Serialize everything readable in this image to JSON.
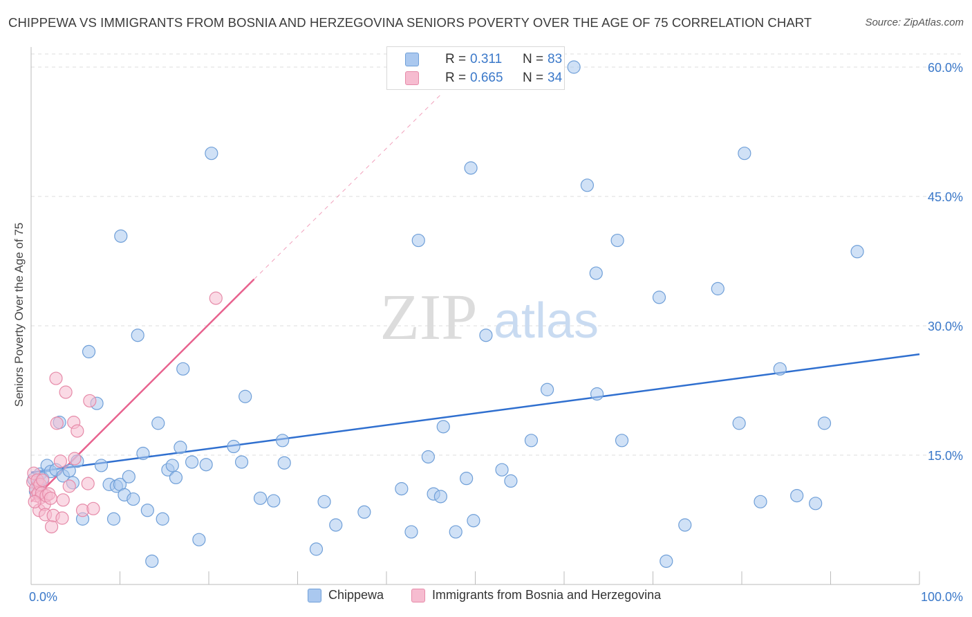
{
  "title": "CHIPPEWA VS IMMIGRANTS FROM BOSNIA AND HERZEGOVINA SENIORS POVERTY OVER THE AGE OF 75 CORRELATION CHART",
  "source": "Source: ZipAtlas.com",
  "watermark": {
    "zip": "ZIP",
    "atlas": "atlas"
  },
  "legend": {
    "r_label": "R =",
    "n_label": "N =",
    "rows": [
      {
        "name": "Chippewa",
        "r": "0.311",
        "n": "83"
      },
      {
        "name": "Immigrants from Bosnia and Herzegovina",
        "r": "0.665",
        "n": "34"
      }
    ]
  },
  "colors": {
    "blue_fill": "#aac8ef",
    "blue_stroke": "#6f9fd8",
    "blue_line": "#2f6fcf",
    "pink_fill": "#f6bcd0",
    "pink_stroke": "#e68aa8",
    "pink_line": "#e8638f",
    "axis_label": "#3a78c9",
    "grid": "#dddddd"
  },
  "chart_data": {
    "type": "scatter",
    "title": "CHIPPEWA VS IMMIGRANTS FROM BOSNIA AND HERZEGOVINA SENIORS POVERTY OVER THE AGE OF 75 CORRELATION CHART",
    "xlabel": "",
    "ylabel": "Seniors Poverty Over the Age of 75",
    "xlim": [
      0,
      100
    ],
    "ylim": [
      0,
      60
    ],
    "x_tick_labels": [
      "0.0%",
      "100.0%"
    ],
    "y_ticks": [
      15,
      30,
      45,
      60
    ],
    "y_tick_labels": [
      "15.0%",
      "30.0%",
      "45.0%",
      "60.0%"
    ],
    "series": [
      {
        "name": "Chippewa",
        "points": [
          [
            0.3,
            12.2
          ],
          [
            0.5,
            10.8
          ],
          [
            0.8,
            11.6
          ],
          [
            1.0,
            12.8
          ],
          [
            1.3,
            12.3
          ],
          [
            1.8,
            13.8
          ],
          [
            2.2,
            13.1
          ],
          [
            2.8,
            13.3
          ],
          [
            3.2,
            18.8
          ],
          [
            3.6,
            12.6
          ],
          [
            4.3,
            13.2
          ],
          [
            4.7,
            11.8
          ],
          [
            5.2,
            14.3
          ],
          [
            5.8,
            7.6
          ],
          [
            6.5,
            27.0
          ],
          [
            7.4,
            21.0
          ],
          [
            7.9,
            13.8
          ],
          [
            8.8,
            11.6
          ],
          [
            9.3,
            7.6
          ],
          [
            9.6,
            11.4
          ],
          [
            10.0,
            11.6
          ],
          [
            10.1,
            40.4
          ],
          [
            10.5,
            10.4
          ],
          [
            11.0,
            12.5
          ],
          [
            11.5,
            9.9
          ],
          [
            12.0,
            28.9
          ],
          [
            12.6,
            15.2
          ],
          [
            13.1,
            8.6
          ],
          [
            13.6,
            2.7
          ],
          [
            14.3,
            18.7
          ],
          [
            14.8,
            7.6
          ],
          [
            15.4,
            13.3
          ],
          [
            15.9,
            13.8
          ],
          [
            16.3,
            12.4
          ],
          [
            16.8,
            15.9
          ],
          [
            17.1,
            25.0
          ],
          [
            18.1,
            14.2
          ],
          [
            18.9,
            5.2
          ],
          [
            19.7,
            13.9
          ],
          [
            20.3,
            50.0
          ],
          [
            22.8,
            16.0
          ],
          [
            23.7,
            14.2
          ],
          [
            24.1,
            21.8
          ],
          [
            25.8,
            10.0
          ],
          [
            27.3,
            9.7
          ],
          [
            28.3,
            16.7
          ],
          [
            28.5,
            14.1
          ],
          [
            32.1,
            4.1
          ],
          [
            33.0,
            9.6
          ],
          [
            34.3,
            6.9
          ],
          [
            37.5,
            8.4
          ],
          [
            41.7,
            11.1
          ],
          [
            42.8,
            6.1
          ],
          [
            43.6,
            39.9
          ],
          [
            44.7,
            14.8
          ],
          [
            45.3,
            10.5
          ],
          [
            46.1,
            10.2
          ],
          [
            46.4,
            18.3
          ],
          [
            47.8,
            6.1
          ],
          [
            49.0,
            12.3
          ],
          [
            49.5,
            48.3
          ],
          [
            49.8,
            7.4
          ],
          [
            51.2,
            28.9
          ],
          [
            53.0,
            13.3
          ],
          [
            54.0,
            12.0
          ],
          [
            56.3,
            16.7
          ],
          [
            58.1,
            22.6
          ],
          [
            61.1,
            60.0
          ],
          [
            62.6,
            46.3
          ],
          [
            63.6,
            36.1
          ],
          [
            63.7,
            22.1
          ],
          [
            66.0,
            39.9
          ],
          [
            66.5,
            16.7
          ],
          [
            70.7,
            33.3
          ],
          [
            71.5,
            2.7
          ],
          [
            73.6,
            6.9
          ],
          [
            77.3,
            34.3
          ],
          [
            79.7,
            18.7
          ],
          [
            80.3,
            50.0
          ],
          [
            82.1,
            9.6
          ],
          [
            84.3,
            25.0
          ],
          [
            86.2,
            10.3
          ],
          [
            88.3,
            9.4
          ],
          [
            89.3,
            18.7
          ],
          [
            93.0,
            38.6
          ]
        ]
      },
      {
        "name": "Immigrants from Bosnia and Herzegovina",
        "points": [
          [
            0.2,
            11.9
          ],
          [
            0.3,
            12.9
          ],
          [
            0.5,
            11.1
          ],
          [
            0.6,
            10.3
          ],
          [
            0.7,
            12.1
          ],
          [
            0.8,
            10.6
          ],
          [
            0.9,
            8.6
          ],
          [
            1.0,
            11.6
          ],
          [
            1.1,
            10.1
          ],
          [
            1.2,
            10.6
          ],
          [
            1.3,
            12.1
          ],
          [
            1.5,
            9.3
          ],
          [
            1.6,
            8.1
          ],
          [
            1.7,
            10.3
          ],
          [
            2.0,
            10.5
          ],
          [
            2.2,
            10.0
          ],
          [
            2.3,
            6.7
          ],
          [
            2.5,
            8.0
          ],
          [
            2.8,
            23.9
          ],
          [
            2.9,
            18.7
          ],
          [
            3.3,
            14.3
          ],
          [
            3.5,
            7.7
          ],
          [
            3.6,
            9.8
          ],
          [
            3.9,
            22.3
          ],
          [
            4.3,
            11.4
          ],
          [
            4.8,
            18.8
          ],
          [
            4.9,
            14.6
          ],
          [
            5.2,
            17.8
          ],
          [
            5.8,
            8.6
          ],
          [
            6.4,
            11.7
          ],
          [
            6.6,
            21.3
          ],
          [
            7.0,
            8.8
          ],
          [
            20.8,
            33.2
          ],
          [
            0.4,
            9.6
          ]
        ]
      }
    ],
    "trend_lines": [
      {
        "series": "Chippewa",
        "x": [
          0,
          100
        ],
        "y": [
          13.0,
          26.7
        ],
        "style": "solid"
      },
      {
        "series": "Immigrants from Bosnia and Herzegovina",
        "x": [
          0,
          25.1
        ],
        "y": [
          9.6,
          35.4
        ],
        "style": "solid"
      },
      {
        "series": "Immigrants from Bosnia and Herzegovina",
        "x": [
          25.1,
          46.3
        ],
        "y": [
          35.4,
          57.0
        ],
        "style": "dashed"
      }
    ]
  }
}
